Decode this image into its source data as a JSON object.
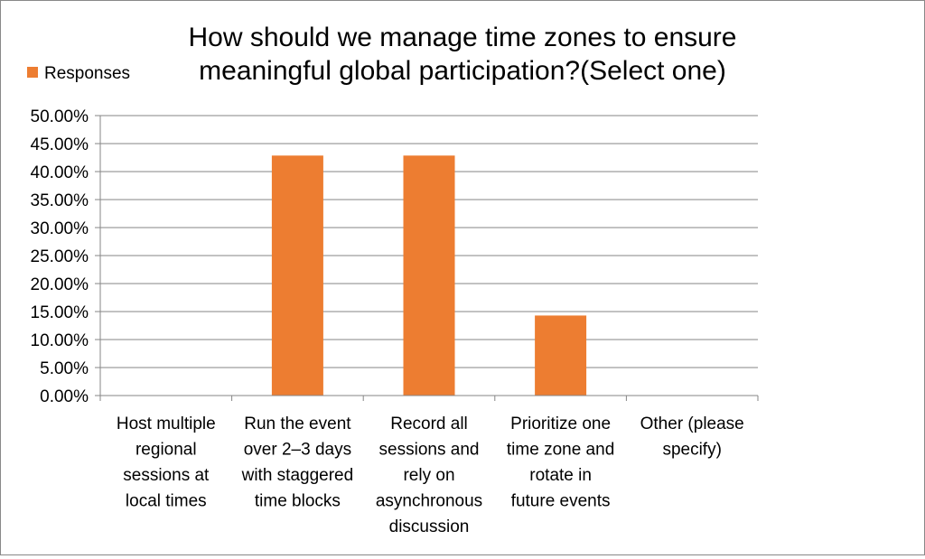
{
  "chart_data": {
    "type": "bar",
    "title_lines": [
      "How should we manage time zones to ensure",
      "meaningful global participation?(Select one)"
    ],
    "categories": [
      [
        "Host multiple",
        "regional",
        "sessions at",
        "local times"
      ],
      [
        "Run the event",
        "over 2–3 days",
        "with staggered",
        "time blocks"
      ],
      [
        "Record all",
        "sessions and",
        "rely on",
        "asynchronous",
        "discussion"
      ],
      [
        "Prioritize one",
        "time zone and",
        "rotate in",
        "future events"
      ],
      [
        "Other (please",
        "specify)"
      ]
    ],
    "series": [
      {
        "name": "Responses",
        "values": [
          0,
          42.86,
          42.86,
          14.29,
          0
        ],
        "color": "#ed7d31"
      }
    ],
    "legend_position": "top-left",
    "ylim": [
      0,
      50
    ],
    "ytick_step": 5,
    "ytick_labels": [
      "0.00%",
      "5.00%",
      "10.00%",
      "15.00%",
      "20.00%",
      "25.00%",
      "30.00%",
      "35.00%",
      "40.00%",
      "45.00%",
      "50.00%"
    ],
    "grid": true,
    "gridline_color": "#868686",
    "axis_color": "#868686"
  }
}
